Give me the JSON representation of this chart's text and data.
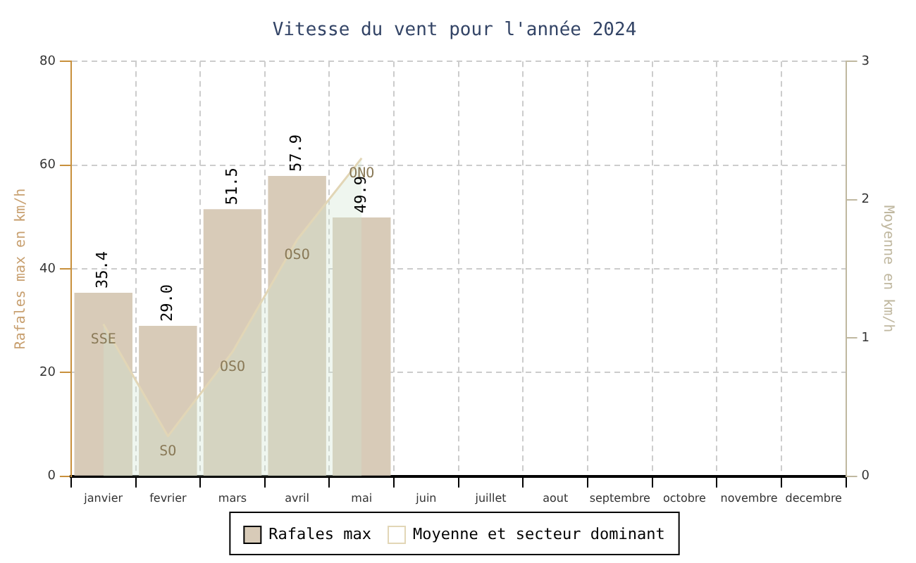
{
  "chart_data": {
    "type": "bar",
    "title": "Vitesse du vent pour l'année 2024",
    "ylabel": "Rafales max en km/h",
    "y2label": "Moyenne en km/h",
    "categories": [
      "janvier",
      "fevrier",
      "mars",
      "avril",
      "mai",
      "juin",
      "juillet",
      "aout",
      "septembre",
      "octobre",
      "novembre",
      "decembre"
    ],
    "series": [
      {
        "name": "Rafales max",
        "color": "#d8cbb8",
        "values": [
          35.4,
          29.0,
          51.5,
          57.9,
          49.9,
          null,
          null,
          null,
          null,
          null,
          null,
          null
        ],
        "value_labels": [
          "35.4",
          "29.0",
          "51.5",
          "57.9",
          "49.9",
          null,
          null,
          null,
          null,
          null,
          null,
          null
        ]
      },
      {
        "name": "Moyenne et secteur dominant",
        "type": "area",
        "axis": "y2",
        "color": "#e2d6b6",
        "values": [
          1.1,
          0.29,
          0.9,
          1.71,
          2.3,
          null,
          null,
          null,
          null,
          null,
          null,
          null
        ],
        "value_labels": [
          "SSE",
          "SO",
          "OSO",
          "OSO",
          "ONO",
          null,
          null,
          null,
          null,
          null,
          null,
          null
        ]
      }
    ],
    "ylim": [
      0,
      80
    ],
    "yticks": [
      0,
      20,
      40,
      60,
      80
    ],
    "y2lim": [
      0,
      3
    ],
    "y2ticks": [
      0,
      1,
      2,
      3
    ],
    "grid": true,
    "legend": "bottom"
  }
}
